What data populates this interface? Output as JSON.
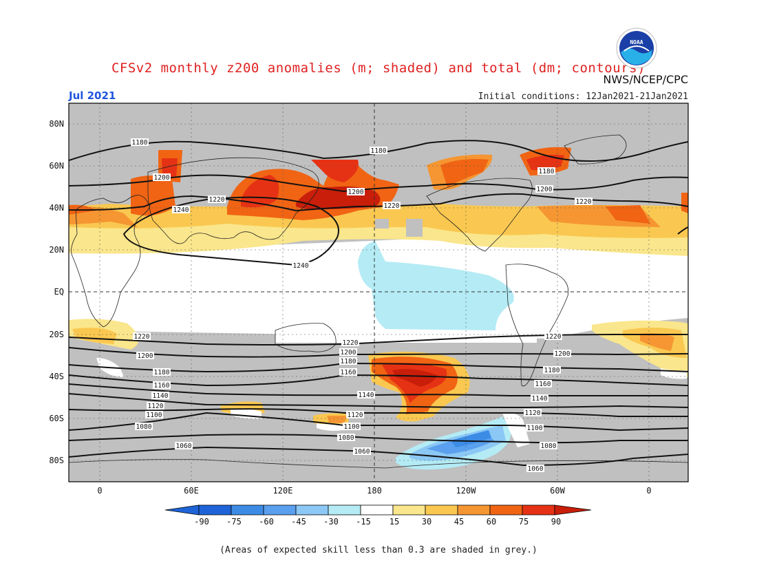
{
  "header": {
    "title": "CFSv2 monthly z200 anomalies (m; shaded) and total (dm; contours)",
    "month": "Jul 2021",
    "agency": "NWS/NCEP/CPC",
    "initial_conditions": "Initial conditions: 12Jan2021-21Jan2021",
    "logo_text": "NOAA"
  },
  "map": {
    "lat_labels": [
      "80N",
      "60N",
      "40N",
      "20N",
      "EQ",
      "20S",
      "40S",
      "60S",
      "80S"
    ],
    "lon_labels": [
      "0",
      "60E",
      "120E",
      "180",
      "120W",
      "60W",
      "0"
    ],
    "contour_labels": [
      "1180",
      "1180",
      "1180",
      "1200",
      "1200",
      "1200",
      "1200",
      "1220",
      "1220",
      "1220",
      "1220",
      "1220",
      "1220",
      "1240",
      "1240",
      "1200",
      "1200",
      "1200",
      "1180",
      "1180",
      "1180",
      "1160",
      "1160",
      "1160",
      "1140",
      "1140",
      "1140",
      "1120",
      "1120",
      "1120",
      "1100",
      "1100",
      "1100",
      "1080",
      "1080",
      "1080",
      "1060",
      "1060",
      "1060"
    ],
    "colors": {
      "grey": "#c0c0c0",
      "neg90": "#1e64d8",
      "neg75": "#3c8ce6",
      "neg60": "#5aa0ee",
      "neg45": "#8cc8f5",
      "neg30": "#b4ebf5",
      "pos15": "#fae68c",
      "pos30": "#fac850",
      "pos45": "#f59632",
      "pos60": "#f06414",
      "pos75": "#e63214",
      "pos90": "#c81e0a"
    }
  },
  "colorbar": {
    "ticks": [
      "-90",
      "-75",
      "-60",
      "-45",
      "-30",
      "-15",
      "15",
      "30",
      "45",
      "60",
      "75",
      "90"
    ]
  },
  "footnote": "(Areas of expected skill less than 0.3 are shaded in grey.)"
}
